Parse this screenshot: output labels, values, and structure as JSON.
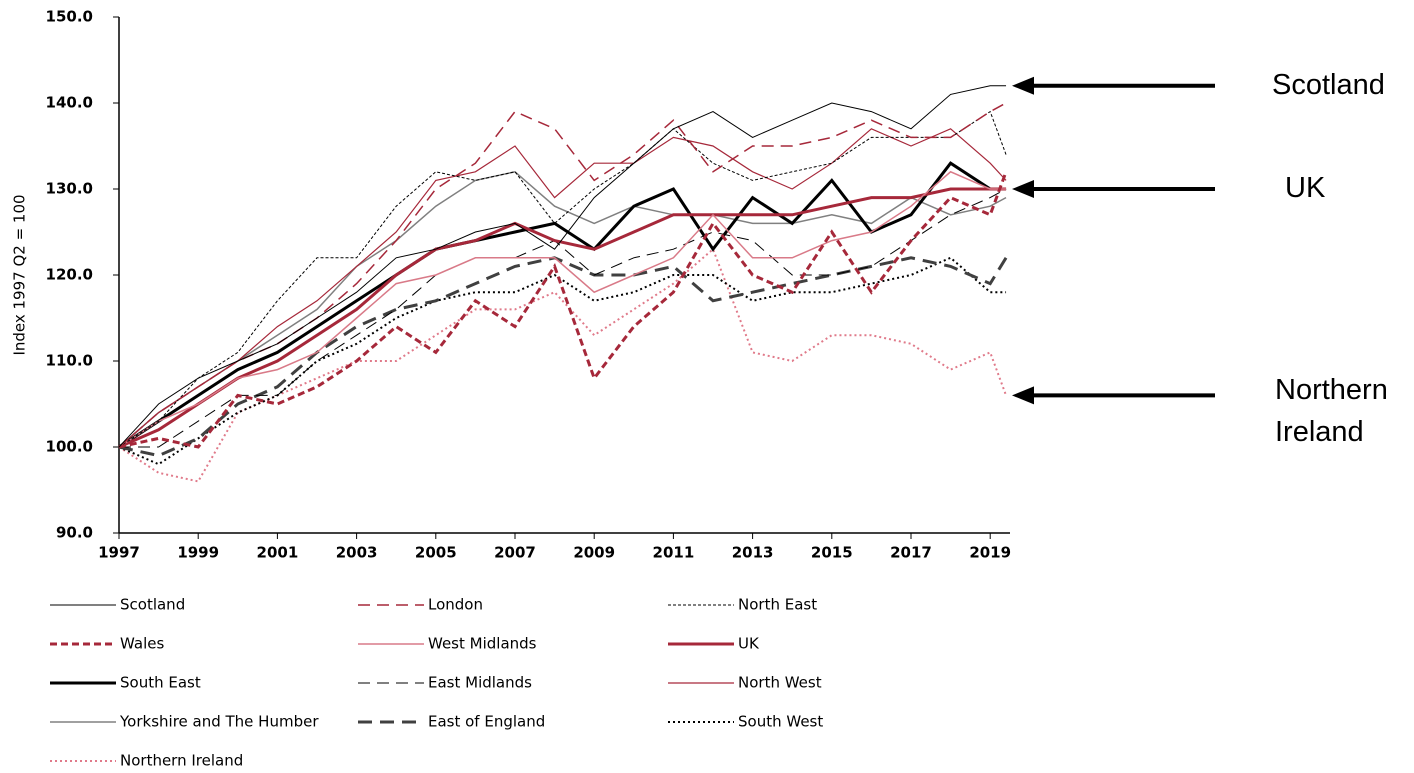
{
  "chart_data": {
    "type": "line",
    "y_label": "Index 1997 Q2 = 100",
    "x": [
      1997,
      1998,
      1999,
      2000,
      2001,
      2002,
      2003,
      2004,
      2005,
      2006,
      2007,
      2008,
      2009,
      2010,
      2011,
      2012,
      2013,
      2014,
      2015,
      2016,
      2017,
      2018,
      2019,
      2019.4
    ],
    "xlim": [
      1997,
      2019.5
    ],
    "xticks": [
      1997,
      1999,
      2001,
      2003,
      2005,
      2007,
      2009,
      2011,
      2013,
      2015,
      2017,
      2019
    ],
    "ylim": [
      90,
      150
    ],
    "yticks": [
      {
        "value": 90,
        "label": "90.0"
      },
      {
        "value": 100,
        "label": "100.0"
      },
      {
        "value": 110,
        "label": "110.0"
      },
      {
        "value": 120,
        "label": "120.0"
      },
      {
        "value": 130,
        "label": "130.0"
      },
      {
        "value": 140,
        "label": "140.0"
      },
      {
        "value": 150,
        "label": "150.0"
      }
    ],
    "series": [
      {
        "name": "Scotland",
        "color": "#000000",
        "dash": "solid",
        "width": 1,
        "values": [
          100,
          105,
          108,
          110,
          112,
          115,
          118,
          122,
          123,
          125,
          126,
          123,
          129,
          133,
          137,
          139,
          136,
          138,
          140,
          139,
          137,
          141,
          142,
          142
        ]
      },
      {
        "name": "London",
        "color": "#a6283a",
        "dash": "long",
        "width": 1.5,
        "values": [
          100,
          104,
          107,
          110,
          112,
          115,
          119,
          124,
          130,
          133,
          139,
          137,
          131,
          134,
          138,
          132,
          135,
          135,
          136,
          138,
          136,
          136,
          139,
          140
        ]
      },
      {
        "name": "North East",
        "color": "#000000",
        "dash": "fine",
        "width": 1,
        "values": [
          100,
          103,
          108,
          111,
          117,
          122,
          122,
          128,
          132,
          131,
          132,
          126,
          130,
          133,
          137,
          133,
          131,
          132,
          133,
          136,
          136,
          136,
          139,
          134
        ]
      },
      {
        "name": "Wales",
        "color": "#a6283a",
        "dash": "medium",
        "width": 3,
        "values": [
          100,
          101,
          100,
          106,
          105,
          107,
          110,
          114,
          111,
          117,
          114,
          121,
          108,
          114,
          118,
          126,
          120,
          118,
          125,
          118,
          124,
          129,
          127,
          132
        ]
      },
      {
        "name": "West Midlands",
        "color": "#d97a88",
        "dash": "solid",
        "width": 1.5,
        "values": [
          100,
          103,
          105,
          108,
          109,
          111,
          115,
          119,
          120,
          122,
          122,
          122,
          118,
          120,
          122,
          127,
          122,
          122,
          124,
          125,
          128,
          132,
          130,
          130
        ]
      },
      {
        "name": "UK",
        "color": "#a6283a",
        "dash": "solid",
        "width": 3,
        "values": [
          100,
          102,
          105,
          108,
          110,
          113,
          116,
          120,
          123,
          124,
          126,
          124,
          123,
          125,
          127,
          127,
          127,
          127,
          128,
          129,
          129,
          130,
          130,
          130
        ]
      },
      {
        "name": "South East",
        "color": "#000000",
        "dash": "solid",
        "width": 3,
        "values": [
          100,
          103,
          106,
          109,
          111,
          114,
          117,
          120,
          123,
          124,
          125,
          126,
          123,
          128,
          130,
          123,
          129,
          126,
          131,
          125,
          127,
          133,
          130,
          130
        ]
      },
      {
        "name": "East Midlands",
        "color": "#000000",
        "dash": "long",
        "width": 1,
        "values": [
          100,
          100,
          103,
          106,
          106,
          110,
          113,
          116,
          120,
          122,
          122,
          124,
          120,
          122,
          123,
          125,
          124,
          120,
          120,
          121,
          124,
          127,
          129,
          130
        ]
      },
      {
        "name": "North West",
        "color": "#a6283a",
        "dash": "solid",
        "width": 1.2,
        "values": [
          100,
          104,
          107,
          110,
          114,
          117,
          121,
          125,
          131,
          132,
          135,
          129,
          133,
          133,
          136,
          135,
          132,
          130,
          133,
          137,
          135,
          137,
          133,
          131
        ]
      },
      {
        "name": "Yorkshire and The Humber",
        "color": "#808080",
        "dash": "solid",
        "width": 1.5,
        "values": [
          100,
          104,
          107,
          110,
          113,
          116,
          121,
          124,
          128,
          131,
          132,
          128,
          126,
          128,
          127,
          127,
          126,
          126,
          127,
          126,
          129,
          127,
          128,
          129
        ]
      },
      {
        "name": "East of England",
        "color": "#404040",
        "dash": "heavy",
        "width": 3,
        "values": [
          100,
          99,
          101,
          105,
          107,
          111,
          114,
          116,
          117,
          119,
          121,
          122,
          120,
          120,
          121,
          117,
          118,
          119,
          120,
          121,
          122,
          121,
          119,
          122
        ]
      },
      {
        "name": "South West",
        "color": "#000000",
        "dash": "dot",
        "width": 2,
        "values": [
          100,
          98,
          101,
          104,
          106,
          110,
          112,
          115,
          117,
          118,
          118,
          120,
          117,
          118,
          120,
          120,
          117,
          118,
          118,
          119,
          120,
          122,
          118,
          118
        ]
      },
      {
        "name": "Northern Ireland",
        "color": "#e07a8a",
        "dash": "dot",
        "width": 2,
        "values": [
          100,
          97,
          96,
          104,
          106,
          108,
          110,
          110,
          113,
          116,
          116,
          118,
          113,
          116,
          119,
          123,
          111,
          110,
          113,
          113,
          112,
          109,
          111,
          106
        ]
      }
    ],
    "annotations": [
      {
        "text": "Scotland",
        "series": 0
      },
      {
        "text": "UK",
        "series": 5
      },
      {
        "text": "Northern Ireland",
        "series": 12
      }
    ]
  }
}
